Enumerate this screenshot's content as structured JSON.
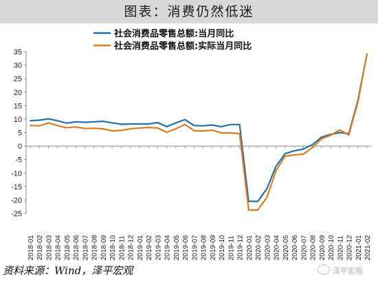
{
  "header": {
    "title": "图表：消费仍然低迷"
  },
  "footer": {
    "source": "资料来源：Wind，泽平宏观"
  },
  "watermark": {
    "text": "泽平宏观",
    "icon": "wechat-icon"
  },
  "colors": {
    "nominal": "#1f6fa8",
    "real": "#e07b1f",
    "title_band": "#d8d8d8"
  },
  "chart_data": {
    "type": "line",
    "title": "",
    "xlabel": "",
    "ylabel": "",
    "ylim": [
      -25,
      35
    ],
    "yticks": [
      35,
      30,
      25,
      20,
      15,
      10,
      5,
      0,
      -5,
      -10,
      -15,
      -20,
      -25
    ],
    "grid": false,
    "legend_position": "top",
    "categories": [
      "2018-01",
      "2018-02",
      "2018-03",
      "2018-04",
      "2018-05",
      "2018-06",
      "2018-07",
      "2018-08",
      "2018-09",
      "2018-10",
      "2018-11",
      "2018-12",
      "2019-01",
      "2019-02",
      "2019-03",
      "2019-04",
      "2019-05",
      "2019-06",
      "2019-07",
      "2019-08",
      "2019-09",
      "2019-10",
      "2019-11",
      "2019-12",
      "2020-01",
      "2020-02",
      "2020-03",
      "2020-04",
      "2020-05",
      "2020-06",
      "2020-07",
      "2020-08",
      "2020-09",
      "2020-10",
      "2020-11",
      "2020-12",
      "2021-01",
      "2021-02"
    ],
    "series": [
      {
        "name": "社会消费品零售总额:当月同比",
        "values": [
          9.4,
          9.6,
          10.1,
          9.4,
          8.5,
          9.0,
          8.8,
          9.0,
          9.2,
          8.6,
          8.1,
          8.2,
          8.2,
          8.2,
          8.7,
          7.2,
          8.6,
          9.8,
          7.6,
          7.5,
          7.8,
          7.2,
          8.0,
          8.0,
          -20.5,
          -20.5,
          -15.8,
          -7.5,
          -2.8,
          -1.8,
          -1.1,
          0.5,
          3.3,
          4.3,
          5.0,
          4.6,
          17.0,
          34.2
        ]
      },
      {
        "name": "社会消费品零售总额:实际当月同比",
        "values": [
          7.6,
          7.5,
          8.6,
          7.6,
          6.8,
          7.1,
          6.5,
          6.6,
          6.4,
          5.6,
          5.8,
          6.4,
          6.7,
          6.9,
          6.7,
          5.1,
          6.4,
          8.0,
          5.7,
          5.6,
          5.9,
          4.9,
          4.9,
          4.6,
          -23.7,
          -23.7,
          -19.0,
          -9.1,
          -3.7,
          -3.3,
          -3.0,
          -0.6,
          2.7,
          4.0,
          6.0,
          4.1,
          16.3,
          34.2
        ]
      }
    ]
  }
}
